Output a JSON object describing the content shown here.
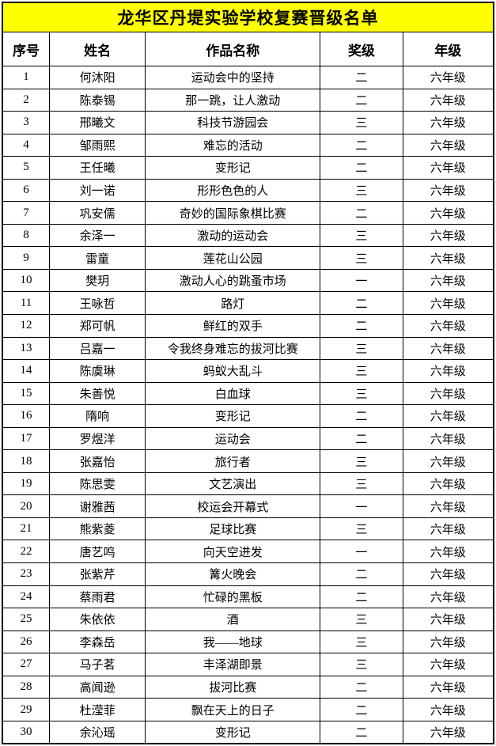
{
  "title": "龙华区丹堤实验学校复赛晋级名单",
  "columns": [
    "序号",
    "姓名",
    "作品名称",
    "奖级",
    "年级"
  ],
  "rows": [
    {
      "no": "1",
      "name": "何沐阳",
      "work": "运动会中的坚持",
      "award": "二",
      "grade": "六年级"
    },
    {
      "no": "2",
      "name": "陈泰锡",
      "work": "那一跳，让人激动",
      "award": "二",
      "grade": "六年级"
    },
    {
      "no": "3",
      "name": "邢曦文",
      "work": "科技节游园会",
      "award": "三",
      "grade": "六年级"
    },
    {
      "no": "4",
      "name": "邹雨熙",
      "work": "难忘的活动",
      "award": "二",
      "grade": "六年级"
    },
    {
      "no": "5",
      "name": "王任曦",
      "work": "变形记",
      "award": "二",
      "grade": "六年级"
    },
    {
      "no": "6",
      "name": "刘一诺",
      "work": "形形色色的人",
      "award": "三",
      "grade": "六年级"
    },
    {
      "no": "7",
      "name": "巩安儒",
      "work": "奇妙的国际象棋比赛",
      "award": "二",
      "grade": "六年级"
    },
    {
      "no": "8",
      "name": "余泽一",
      "work": "激动的运动会",
      "award": "三",
      "grade": "六年级"
    },
    {
      "no": "9",
      "name": "雷童",
      "work": "莲花山公园",
      "award": "三",
      "grade": "六年级"
    },
    {
      "no": "10",
      "name": "樊玥",
      "work": "激动人心的跳蚤市场",
      "award": "一",
      "grade": "六年级"
    },
    {
      "no": "11",
      "name": "王咏哲",
      "work": "路灯",
      "award": "二",
      "grade": "六年级"
    },
    {
      "no": "12",
      "name": "郑可帆",
      "work": "鲜红的双手",
      "award": "二",
      "grade": "六年级"
    },
    {
      "no": "13",
      "name": "吕嘉一",
      "work": "令我终身难忘的拔河比赛",
      "award": "三",
      "grade": "六年级"
    },
    {
      "no": "14",
      "name": "陈虞琳",
      "work": "蚂蚁大乱斗",
      "award": "三",
      "grade": "六年级"
    },
    {
      "no": "15",
      "name": "朱善悦",
      "work": "白血球",
      "award": "三",
      "grade": "六年级"
    },
    {
      "no": "16",
      "name": "隋响",
      "work": "变形记",
      "award": "二",
      "grade": "六年级"
    },
    {
      "no": "17",
      "name": "罗煜洋",
      "work": "运动会",
      "award": "二",
      "grade": "六年级"
    },
    {
      "no": "18",
      "name": "张嘉怡",
      "work": "旅行者",
      "award": "三",
      "grade": "六年级"
    },
    {
      "no": "19",
      "name": "陈思雯",
      "work": "文艺演出",
      "award": "三",
      "grade": "六年级"
    },
    {
      "no": "20",
      "name": "谢雅茜",
      "work": "校运会开幕式",
      "award": "一",
      "grade": "六年级"
    },
    {
      "no": "21",
      "name": "熊紫菱",
      "work": "足球比赛",
      "award": "三",
      "grade": "六年级"
    },
    {
      "no": "22",
      "name": "唐艺鸣",
      "work": "向天空进发",
      "award": "一",
      "grade": "六年级"
    },
    {
      "no": "23",
      "name": "张紫芹",
      "work": "篝火晚会",
      "award": "二",
      "grade": "六年级"
    },
    {
      "no": "24",
      "name": "蔡雨君",
      "work": "忙碌的黑板",
      "award": "二",
      "grade": "六年级"
    },
    {
      "no": "25",
      "name": "朱依依",
      "work": "酒",
      "award": "三",
      "grade": "六年级"
    },
    {
      "no": "26",
      "name": "李森岳",
      "work": "我——地球",
      "award": "三",
      "grade": "六年级"
    },
    {
      "no": "27",
      "name": "马子茗",
      "work": "丰泽湖即景",
      "award": "三",
      "grade": "六年级"
    },
    {
      "no": "28",
      "name": "高闻逊",
      "work": "拔河比赛",
      "award": "二",
      "grade": "六年级"
    },
    {
      "no": "29",
      "name": "杜滢菲",
      "work": "飘在天上的日子",
      "award": "二",
      "grade": "六年级"
    },
    {
      "no": "30",
      "name": "余沁瑶",
      "work": "变形记",
      "award": "二",
      "grade": "六年级"
    }
  ],
  "colors": {
    "title_background": "#FFFF00",
    "border": "#000000",
    "text": "#000000",
    "row_background": "#FFFFFF"
  }
}
